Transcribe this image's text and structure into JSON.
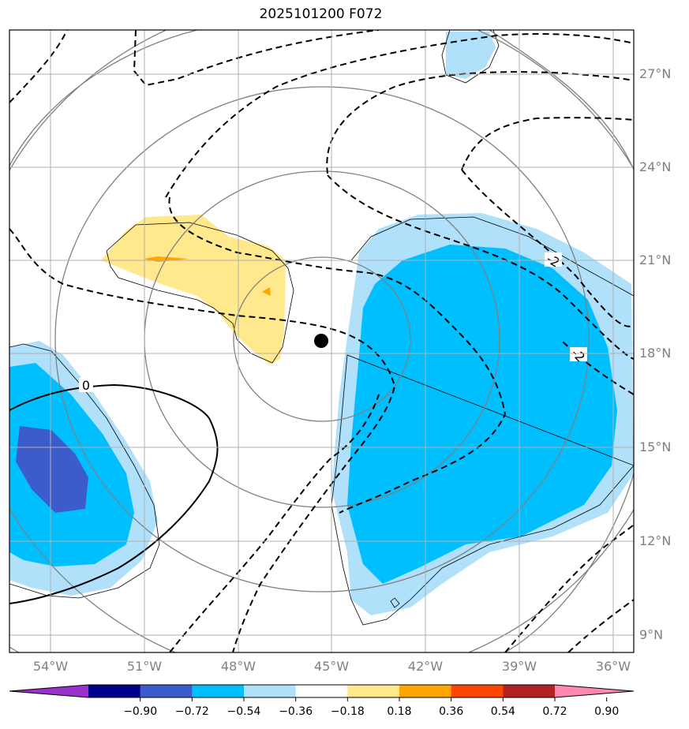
{
  "title": "2025101200 F072",
  "lat_labels": [
    "27°N",
    "24°N",
    "21°N",
    "18°N",
    "15°N",
    "12°N",
    "9°N"
  ],
  "lon_labels": [
    "54°W",
    "51°W",
    "48°W",
    "45°W",
    "42°W",
    "39°W",
    "36°W"
  ],
  "colorbar": {
    "tick_labels": [
      "−0.90",
      "−0.72",
      "−0.54",
      "−0.36",
      "−0.18",
      "0.18",
      "0.36",
      "0.54",
      "0.72",
      "0.90"
    ],
    "colors": [
      "#9932cc",
      "#00008b",
      "#3c5ccc",
      "#00bfff",
      "#b0e0fa",
      "#ffffff",
      "#ffe98c",
      "#ffa500",
      "#ff4500",
      "#b22222",
      "#ff88b0"
    ]
  },
  "contour_labels": {
    "zero": "0",
    "minus_two_a": "-2",
    "minus_two_b": "-2"
  },
  "storm_center_marker": "black-dot"
}
